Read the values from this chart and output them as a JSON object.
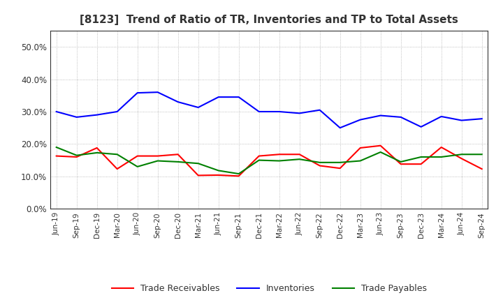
{
  "title": "[8123]  Trend of Ratio of TR, Inventories and TP to Total Assets",
  "x_labels": [
    "Jun-19",
    "Sep-19",
    "Dec-19",
    "Mar-20",
    "Jun-20",
    "Sep-20",
    "Dec-20",
    "Mar-21",
    "Jun-21",
    "Sep-21",
    "Dec-21",
    "Mar-22",
    "Jun-22",
    "Sep-22",
    "Dec-22",
    "Mar-23",
    "Jun-23",
    "Sep-23",
    "Dec-23",
    "Mar-24",
    "Jun-24",
    "Sep-24"
  ],
  "trade_receivables": [
    0.163,
    0.16,
    0.188,
    0.123,
    0.163,
    0.163,
    0.168,
    0.103,
    0.104,
    0.101,
    0.163,
    0.168,
    0.168,
    0.133,
    0.125,
    0.188,
    0.195,
    0.138,
    0.138,
    0.19,
    0.155,
    0.123
  ],
  "inventories": [
    0.3,
    0.283,
    0.29,
    0.3,
    0.358,
    0.36,
    0.33,
    0.313,
    0.345,
    0.345,
    0.3,
    0.3,
    0.295,
    0.305,
    0.25,
    0.275,
    0.288,
    0.283,
    0.253,
    0.285,
    0.273,
    0.278
  ],
  "trade_payables": [
    0.19,
    0.165,
    0.173,
    0.168,
    0.13,
    0.148,
    0.145,
    0.14,
    0.118,
    0.108,
    0.15,
    0.148,
    0.153,
    0.143,
    0.143,
    0.148,
    0.175,
    0.145,
    0.16,
    0.16,
    0.168,
    0.168
  ],
  "colors": {
    "trade_receivables": "#ff0000",
    "inventories": "#0000ff",
    "trade_payables": "#008000"
  },
  "ylim": [
    0.0,
    0.55
  ],
  "yticks": [
    0.0,
    0.1,
    0.2,
    0.3,
    0.4,
    0.5
  ],
  "background_color": "#ffffff",
  "grid_color": "#999999"
}
